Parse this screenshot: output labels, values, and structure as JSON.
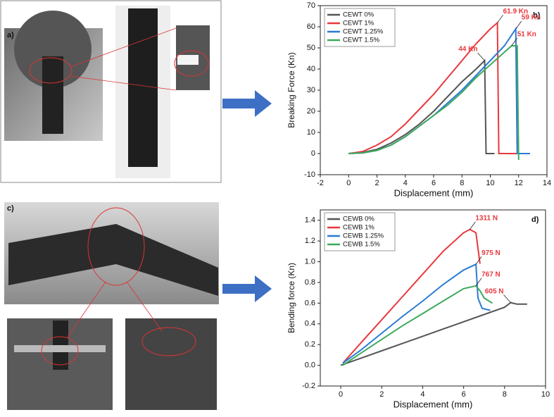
{
  "panel_labels": [
    "a)",
    "c)"
  ],
  "chart_data": [
    {
      "type": "line",
      "panel_label": "b)",
      "x_label": "Displacement (mm)",
      "y_label": "Breaking Force (Kn)",
      "xlim": [
        -2,
        14
      ],
      "xticks": [
        -2,
        0,
        2,
        4,
        6,
        8,
        10,
        12,
        14
      ],
      "ylim": [
        -10,
        70
      ],
      "yticks": [
        -10,
        0,
        10,
        20,
        30,
        40,
        50,
        60,
        70
      ],
      "legend": "upper-left",
      "series": [
        {
          "name": "CEWT 0%",
          "color": "#555555",
          "x": [
            0,
            1,
            2,
            3,
            4,
            5,
            6,
            7,
            8,
            9,
            9.6,
            9.7,
            10.3
          ],
          "values": [
            0,
            0.5,
            2,
            5,
            9,
            14,
            20,
            27,
            34,
            40,
            44,
            0,
            0
          ],
          "value_labels": [
            null,
            null,
            null,
            null,
            null,
            null,
            null,
            null,
            null,
            null,
            "44 Kn",
            null,
            null
          ]
        },
        {
          "name": "CEWT 1%",
          "color": "#e8383d",
          "x": [
            0,
            1,
            2,
            3,
            4,
            5,
            6,
            7,
            8,
            9,
            10,
            10.5,
            10.6,
            12.8
          ],
          "values": [
            0,
            1,
            4,
            8,
            14,
            21,
            28,
            36,
            44,
            52,
            59,
            61.9,
            0,
            0
          ],
          "value_labels": [
            null,
            null,
            null,
            null,
            null,
            null,
            null,
            null,
            null,
            null,
            null,
            "61.9 Kn",
            null,
            null
          ]
        },
        {
          "name": "CEWT 1.25%",
          "color": "#2a7bd5",
          "x": [
            0,
            1,
            2,
            3,
            4,
            5,
            6,
            7,
            8,
            9,
            10,
            11,
            11.8,
            11.9,
            12.8
          ],
          "values": [
            0,
            0.3,
            1.5,
            4,
            8,
            13,
            18,
            24,
            30,
            37,
            44,
            51,
            59,
            0,
            0
          ],
          "value_labels": [
            null,
            null,
            null,
            null,
            null,
            null,
            null,
            null,
            null,
            null,
            null,
            null,
            "59 Kn",
            null,
            null
          ]
        },
        {
          "name": "CEWT 1.5%",
          "color": "#3daa5c",
          "x": [
            0,
            1,
            2,
            3,
            4,
            5,
            6,
            7,
            8,
            9,
            10,
            11,
            11.5,
            11.9,
            12
          ],
          "values": [
            0,
            0.3,
            1.5,
            4,
            8,
            13,
            18,
            23,
            29,
            36,
            42,
            48,
            51,
            51,
            -3
          ],
          "value_labels": [
            null,
            null,
            null,
            null,
            null,
            null,
            null,
            null,
            null,
            null,
            null,
            null,
            "51 Kn",
            null,
            null
          ]
        }
      ]
    },
    {
      "type": "line",
      "panel_label": "d)",
      "x_label": "Displacement (mm)",
      "y_label": "Bending force (Kn)",
      "xlim": [
        -1,
        10
      ],
      "xticks": [
        0,
        2,
        4,
        6,
        8,
        10
      ],
      "ylim": [
        -0.2,
        1.5
      ],
      "yticks": [
        -0.2,
        {
          "value": 0,
          "label": "0.0"
        },
        0.2,
        0.4,
        0.6,
        0.8,
        {
          "value": 1,
          "label": "1.0"
        },
        1.2,
        1.4
      ],
      "legend": "upper-left",
      "series": [
        {
          "name": "CEWB 0%",
          "color": "#555555",
          "x": [
            0,
            1,
            2,
            3,
            4,
            5,
            6,
            7,
            8,
            8.3,
            8.6,
            9.1
          ],
          "values": [
            0,
            0.07,
            0.14,
            0.21,
            0.28,
            0.35,
            0.42,
            0.49,
            0.56,
            0.605,
            0.59,
            0.59
          ],
          "value_labels": [
            null,
            null,
            null,
            null,
            null,
            null,
            null,
            null,
            null,
            "605 N",
            null,
            null
          ]
        },
        {
          "name": "CEWB 1%",
          "color": "#e8383d",
          "x": [
            0.1,
            1,
            2,
            3,
            4,
            5,
            6,
            6.3,
            6.6,
            6.8
          ],
          "values": [
            0.02,
            0.22,
            0.44,
            0.66,
            0.88,
            1.1,
            1.28,
            1.311,
            1.28,
            0.98
          ],
          "value_labels": [
            null,
            null,
            null,
            null,
            null,
            null,
            null,
            "1311 N",
            null,
            null
          ]
        },
        {
          "name": "CEWB 1.25%",
          "color": "#2a7bd5",
          "x": [
            0.1,
            1,
            2,
            3,
            4,
            5,
            6,
            6.6,
            6.7,
            6.9,
            7.3
          ],
          "values": [
            0.02,
            0.15,
            0.31,
            0.47,
            0.62,
            0.78,
            0.92,
            0.975,
            0.65,
            0.55,
            0.53
          ],
          "value_labels": [
            null,
            null,
            null,
            null,
            null,
            null,
            null,
            "975 N",
            null,
            null,
            null
          ]
        },
        {
          "name": "CEWB 1.5%",
          "color": "#3daa5c",
          "x": [
            0.1,
            1,
            2,
            3,
            4,
            5,
            6,
            6.6,
            6.8,
            7,
            7.4
          ],
          "values": [
            0,
            0.12,
            0.25,
            0.38,
            0.5,
            0.62,
            0.74,
            0.767,
            0.72,
            0.65,
            0.6
          ],
          "value_labels": [
            null,
            null,
            null,
            null,
            null,
            null,
            null,
            "767 N",
            null,
            null,
            null
          ]
        }
      ]
    }
  ]
}
